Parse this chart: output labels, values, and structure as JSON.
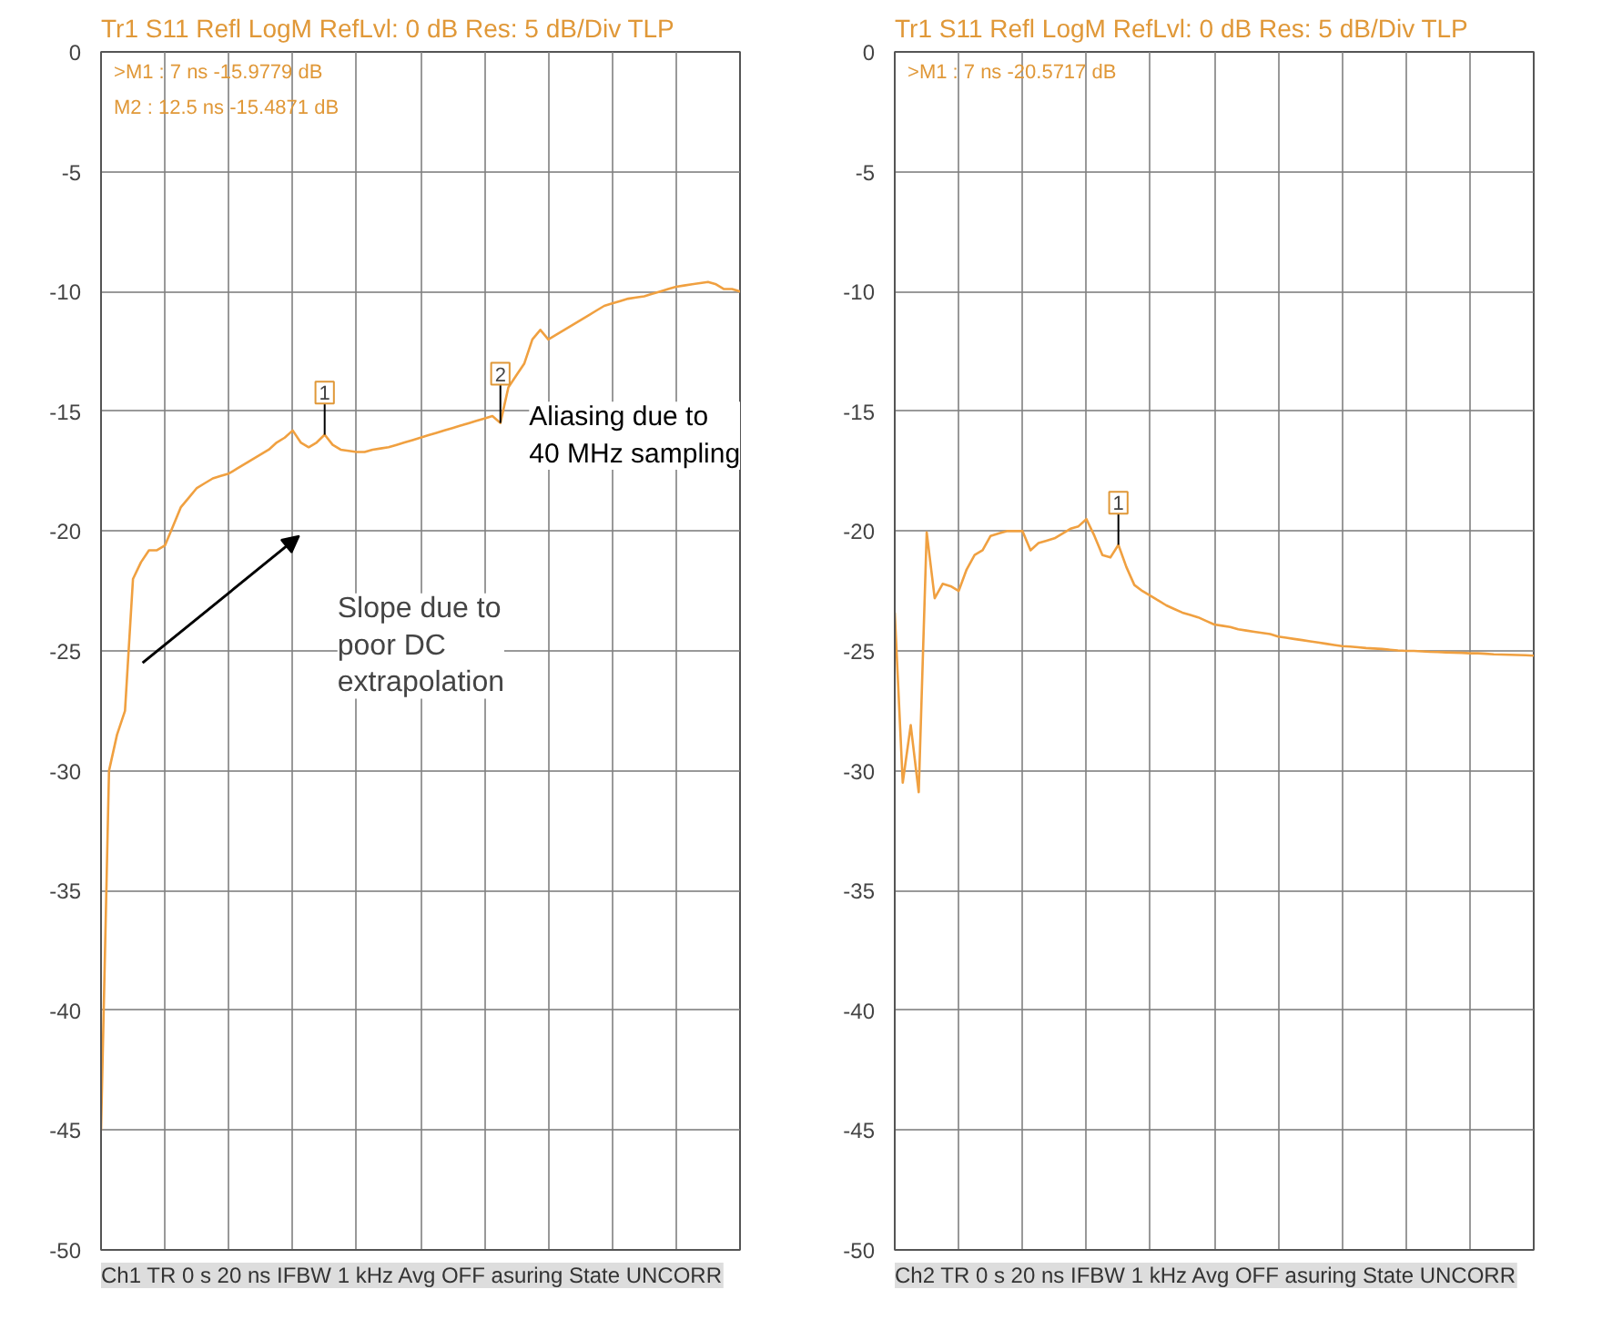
{
  "chart_data": [
    {
      "type": "line",
      "title": "Tr1 S11 Refl LogM RefLvl: 0 dB Res: 5 dB/Div TLP",
      "ylim": [
        -50,
        0
      ],
      "yticks": [
        0,
        -5,
        -10,
        -15,
        -20,
        -25,
        -30,
        -35,
        -40,
        -45,
        -50
      ],
      "grid": true,
      "line_style": "solid",
      "categories": [
        null,
        null,
        null,
        null,
        null,
        null,
        null,
        null,
        null,
        null,
        null,
        null,
        null,
        null,
        null,
        null,
        null,
        null,
        null,
        null,
        null,
        null,
        null,
        null,
        null,
        null,
        null,
        null,
        null,
        null,
        null,
        null,
        null,
        null,
        null,
        null,
        null,
        null,
        null,
        null,
        null,
        null,
        null,
        null,
        null,
        null,
        null,
        null,
        null,
        null,
        null,
        null,
        null,
        null,
        null,
        null,
        null,
        null,
        null,
        null,
        null,
        null,
        null,
        null,
        null,
        null,
        null,
        null,
        null,
        null,
        null,
        null,
        null,
        null,
        null,
        null,
        null,
        null,
        null,
        null,
        null
      ],
      "series": [
        {
          "color": "#f0a040",
          "values": [
            -45,
            -30,
            -28.5,
            -27.5,
            -22,
            -21.3,
            -20.8,
            -20.8,
            -20.6,
            -19.8,
            -19,
            -18.6,
            -18.2,
            -18,
            -17.8,
            -17.7,
            -17.6,
            -17.4,
            -17.2,
            -17,
            -16.8,
            -16.6,
            -16.3,
            -16.1,
            -15.8,
            -16.3,
            -16.5,
            -16.3,
            -15.9779,
            -16.4,
            -16.6,
            -16.65,
            -16.7,
            -16.7,
            -16.6,
            -16.55,
            -16.5,
            -16.4,
            -16.3,
            -16.2,
            -16.1,
            -16,
            -15.9,
            -15.8,
            -15.7,
            -15.6,
            -15.5,
            -15.4,
            -15.3,
            -15.2,
            -15.4871,
            -14,
            -13.5,
            -13,
            -12,
            -11.6,
            -12,
            -11.8,
            -11.6,
            -11.4,
            -11.2,
            -11,
            -10.8,
            -10.6,
            -10.5,
            -10.4,
            -10.3,
            -10.25,
            -10.2,
            -10.1,
            -10,
            -9.9,
            -9.8,
            -9.75,
            -9.7,
            -9.65,
            -9.6,
            -9.7,
            -9.9,
            -9.9,
            -10
          ]
        }
      ],
      "annotations": [
        ">M1 : 7 ns -15.9779 dB",
        "M2 : 12.5 ns -15.4871 dB",
        {
          "text": "1",
          "y": -15.9779
        },
        {
          "text": "2",
          "y": -15.4871
        },
        "Aliasing due to 40 MHz sampling",
        "Slope due to poor DC extrapolation",
        "Ch1 TR 0 s 20 ns IFBW 1 kHz Avg OFF asuring State UNCORR"
      ]
    },
    {
      "type": "line",
      "title": "Tr1 S11 Refl LogM RefLvl: 0 dB Res: 5 dB/Div TLP",
      "ylim": [
        -50,
        0
      ],
      "yticks": [
        0,
        -5,
        -10,
        -15,
        -20,
        -25,
        -30,
        -35,
        -40,
        -45,
        -50
      ],
      "grid": true,
      "line_style": "solid",
      "categories": [
        null,
        null,
        null,
        null,
        null,
        null,
        null,
        null,
        null,
        null,
        null,
        null,
        null,
        null,
        null,
        null,
        null,
        null,
        null,
        null,
        null,
        null,
        null,
        null,
        null,
        null,
        null,
        null,
        null,
        null,
        null,
        null,
        null,
        null,
        null,
        null,
        null,
        null,
        null,
        null,
        null,
        null,
        null,
        null,
        null,
        null,
        null,
        null,
        null,
        null,
        null,
        null,
        null,
        null,
        null,
        null,
        null,
        null,
        null,
        null,
        null,
        null,
        null,
        null,
        null,
        null,
        null,
        null,
        null,
        null,
        null,
        null,
        null,
        null,
        null,
        null,
        null,
        null,
        null,
        null,
        null
      ],
      "series": [
        {
          "color": "#f0a040",
          "values": [
            -23.4,
            -30.5,
            -28.1,
            -30.9,
            -20.05,
            -22.8,
            -22.2,
            -22.3,
            -22.5,
            -21.6,
            -21,
            -20.8,
            -20.2,
            -20.1,
            -20,
            -20,
            -20,
            -20.8,
            -20.5,
            -20.4,
            -20.3,
            -20.1,
            -19.9,
            -19.8,
            -19.5,
            -20.2,
            -21,
            -21.1,
            -20.5717,
            -21.5,
            -22.25,
            -22.5,
            -22.7,
            -22.9,
            -23.1,
            -23.25,
            -23.4,
            -23.5,
            -23.6,
            -23.75,
            -23.9,
            -23.95,
            -24,
            -24.1,
            -24.15,
            -24.2,
            -24.25,
            -24.3,
            -24.4,
            -24.45,
            -24.5,
            -24.55,
            -24.6,
            -24.65,
            -24.7,
            -24.75,
            -24.8,
            -24.82,
            -24.85,
            -24.88,
            -24.9,
            -24.92,
            -24.95,
            -24.98,
            -25,
            -25,
            -25.02,
            -25.04,
            -25.05,
            -25.06,
            -25.07,
            -25.08,
            -25.1,
            -25.1,
            -25.12,
            -25.14,
            -25.15,
            -25.16,
            -25.17,
            -25.18,
            -25.2
          ]
        }
      ],
      "annotations": [
        ">M1 : 7 ns -20.5717 dB",
        {
          "text": "1",
          "y": -20.5717
        },
        "Ch2 TR 0 s 20 ns IFBW 1 kHz Avg OFF asuring State UNCORR"
      ]
    }
  ]
}
